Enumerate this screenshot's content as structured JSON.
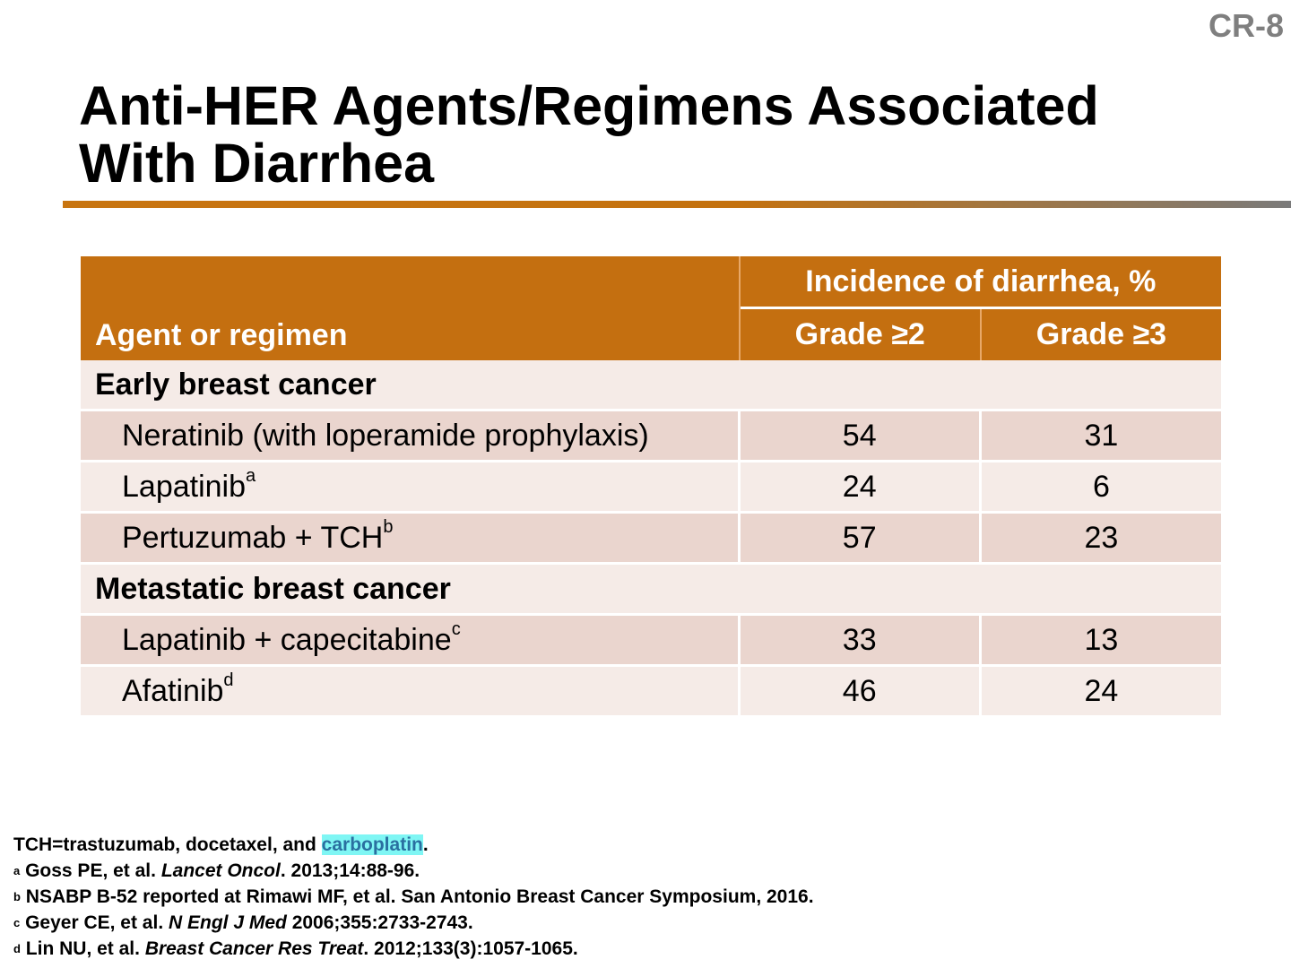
{
  "slide": {
    "id": "CR-8",
    "title_line1": "Anti-HER Agents/Regimens Associated",
    "title_line2": "With Diarrhea"
  },
  "table": {
    "header": {
      "agent": "Agent or regimen",
      "incidence": "Incidence of diarrhea, %",
      "grade2": "Grade ≥2",
      "grade3": "Grade ≥3"
    },
    "sections": [
      {
        "label": "Early breast cancer",
        "rows": [
          {
            "agent": "Neratinib (with loperamide prophylaxis)",
            "sup": "",
            "grade2": "54",
            "grade3": "31"
          },
          {
            "agent": "Lapatinib",
            "sup": "a",
            "grade2": "24",
            "grade3": "6"
          },
          {
            "agent": "Pertuzumab + TCH",
            "sup": "b",
            "grade2": "57",
            "grade3": "23"
          }
        ]
      },
      {
        "label": "Metastatic breast cancer",
        "rows": [
          {
            "agent": "Lapatinib + capecitabine",
            "sup": "c",
            "grade2": "33",
            "grade3": "13"
          },
          {
            "agent": "Afatinib",
            "sup": "d",
            "grade2": "46",
            "grade3": "24"
          }
        ]
      }
    ]
  },
  "footnotes": {
    "tch_prefix": "TCH=trastuzumab, docetaxel, and ",
    "tch_highlight": "carboplatin",
    "tch_suffix": ".",
    "refs": [
      {
        "mark": "a",
        "pre": "Goss PE, et al. ",
        "journal": "Lancet Oncol",
        "post": ". 2013;14:88-96."
      },
      {
        "mark": "b",
        "pre": "NSABP B-52 reported at Rimawi MF, et al. San Antonio Breast Cancer Symposium, 2016.",
        "journal": "",
        "post": ""
      },
      {
        "mark": "c",
        "pre": "Geyer CE, et al. ",
        "journal": "N Engl J Med",
        "post": " 2006;355:2733-2743."
      },
      {
        "mark": "d",
        "pre": "Lin NU, et al. ",
        "journal": "Breast Cancer Res Treat",
        "post": ". 2012;133(3):1057-1065."
      }
    ]
  },
  "colors": {
    "header_bg": "#c46f10",
    "row_dark": "#ead5ce",
    "row_light": "#f5ebe7",
    "rule_start": "#c87510",
    "rule_end": "#7a7a7a",
    "highlight": "#7ff6f4"
  }
}
